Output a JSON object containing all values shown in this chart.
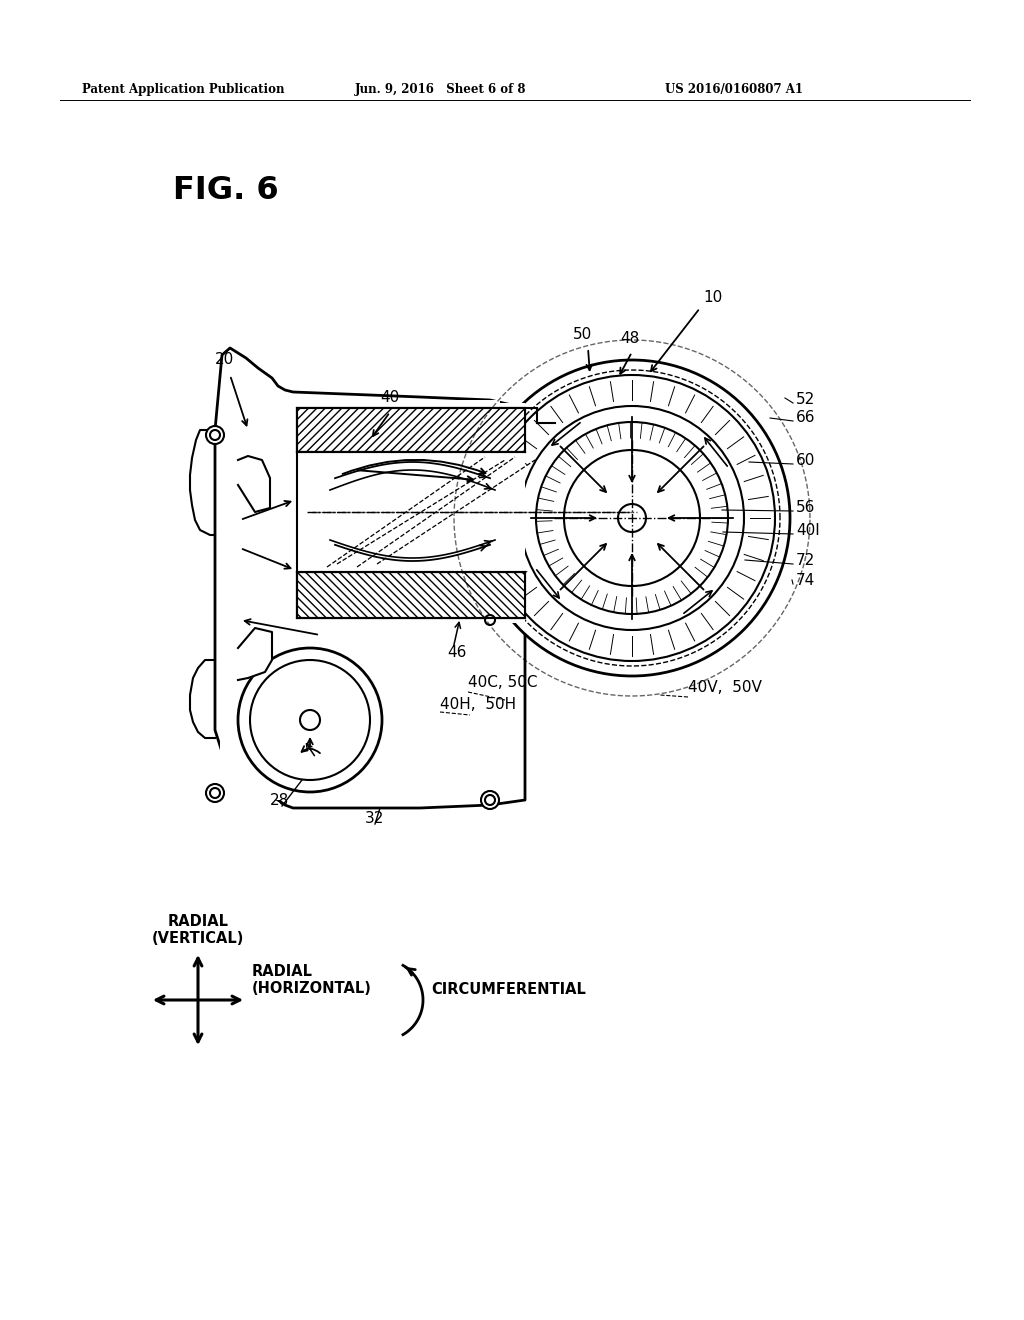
{
  "header_left": "Patent Application Publication",
  "header_mid": "Jun. 9, 2016   Sheet 6 of 8",
  "header_right": "US 2016/0160807 A1",
  "fig_label": "FIG. 6",
  "bg_color": "#ffffff",
  "line_color": "#000000"
}
